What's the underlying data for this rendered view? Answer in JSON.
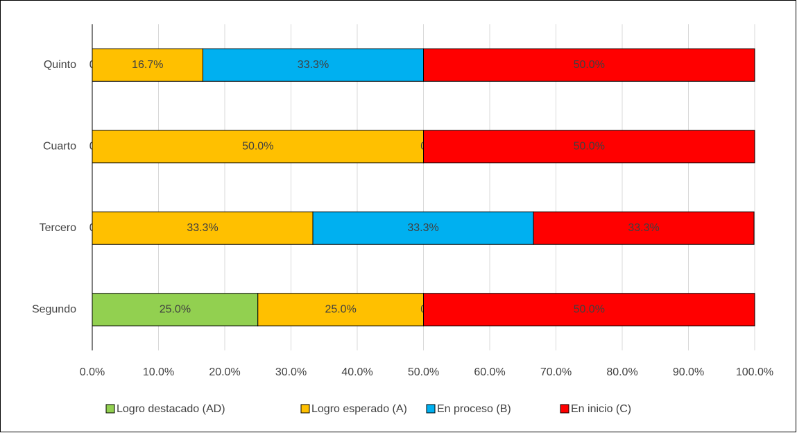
{
  "chart_data": {
    "type": "stacked_barh",
    "categories": [
      "Segundo",
      "Tercero",
      "Cuarto",
      "Quinto"
    ],
    "series": [
      {
        "name": "Logro destacado (AD)",
        "color": "#92d050",
        "values": [
          25,
          0,
          0,
          0
        ],
        "value_labels": [
          "25.0%",
          "0.0%",
          "0.0%",
          "0.0%"
        ]
      },
      {
        "name": "Logro esperado (A)",
        "color": "#ffc000",
        "values": [
          25,
          33.3,
          50,
          16.7
        ],
        "value_labels": [
          "25.0%",
          "33.3%",
          "50.0%",
          "16.7%"
        ]
      },
      {
        "name": "En proceso (B)",
        "color": "#00b0f0",
        "values": [
          0,
          33.3,
          0,
          33.3
        ],
        "value_labels": [
          "0.0%",
          "33.3%",
          "0.0%",
          "33.3%"
        ]
      },
      {
        "name": "En inicio (C)",
        "color": "#ff0000",
        "values": [
          50,
          33.3,
          50,
          50
        ],
        "value_labels": [
          "50.0%",
          "33.3%",
          "50.0%",
          "50.0%"
        ]
      }
    ],
    "xlim": [
      0,
      100
    ],
    "xticks": [
      {
        "value": 0,
        "label": "0.0%"
      },
      {
        "value": 10,
        "label": "10.0%"
      },
      {
        "value": 20,
        "label": "20.0%"
      },
      {
        "value": 30,
        "label": "30.0%"
      },
      {
        "value": 40,
        "label": "40.0%"
      },
      {
        "value": 50,
        "label": "50.0%"
      },
      {
        "value": 60,
        "label": "60.0%"
      },
      {
        "value": 70,
        "label": "70.0%"
      },
      {
        "value": 80,
        "label": "80.0%"
      },
      {
        "value": 90,
        "label": "90.0%"
      },
      {
        "value": 100,
        "label": "100.0%"
      }
    ],
    "grid": true,
    "legend": "bottom"
  }
}
